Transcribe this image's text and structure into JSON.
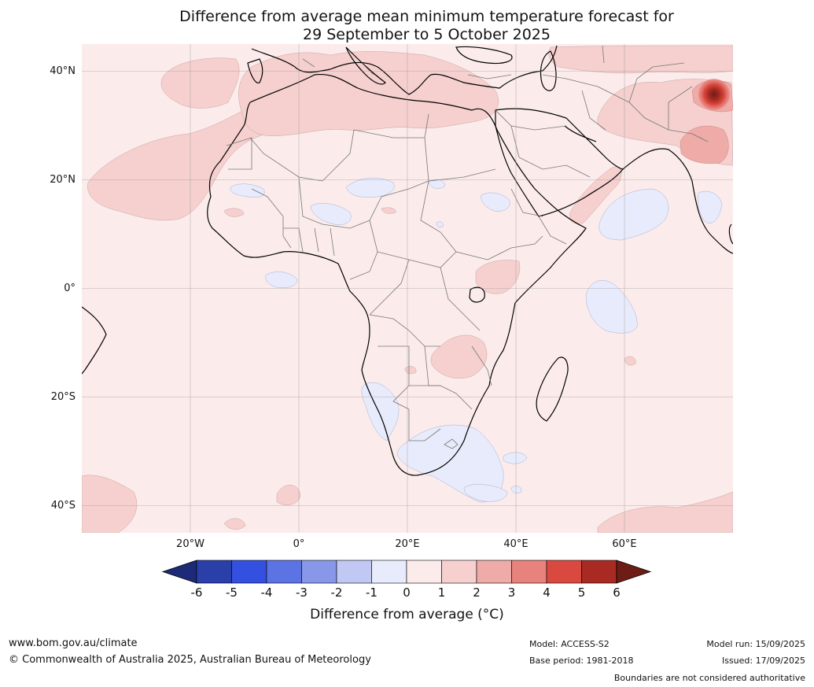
{
  "title": {
    "line1": "Difference from average mean minimum temperature forecast for",
    "line2": "29 September to 5 October 2025"
  },
  "map": {
    "lat_labels": [
      "40°N",
      "20°N",
      "0°",
      "20°S",
      "40°S"
    ],
    "lon_labels": [
      "20°W",
      "0°",
      "20°E",
      "40°E",
      "60°E"
    ],
    "latitudes": [
      40,
      20,
      0,
      -20,
      -40
    ],
    "longitudes": [
      -20,
      0,
      20,
      40,
      60
    ],
    "extent": {
      "lon_min": -40,
      "lon_max": 80,
      "lat_min": -45,
      "lat_max": 45
    }
  },
  "colorbar": {
    "ticks": [
      "-6",
      "-5",
      "-4",
      "-3",
      "-2",
      "-1",
      "0",
      "1",
      "2",
      "3",
      "4",
      "5",
      "6"
    ],
    "colors": [
      "#2b3fa9",
      "#3450e0",
      "#5c73e3",
      "#8897e8",
      "#c0c8f3",
      "#e8ebfb",
      "#fbeceb",
      "#f5d0cf",
      "#eeaba7",
      "#e8827c",
      "#d9493f",
      "#a82a22"
    ],
    "low_extend_color": "#1c2a78",
    "high_extend_color": "#6e1d16",
    "label": "Difference from average (°C)"
  },
  "footer": {
    "website": "www.bom.gov.au/climate",
    "copyright": "© Commonwealth of Australia 2025, Australian Bureau of Meteorology",
    "model": "Model: ACCESS-S2",
    "base_period": "Base period: 1981-2018",
    "model_run": "Model run: 15/09/2025",
    "issued": "Issued: 17/09/2025",
    "disclaimer": "Boundaries are not considered authoritative"
  }
}
